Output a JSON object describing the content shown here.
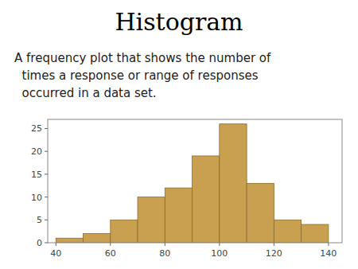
{
  "chart_data": {
    "type": "histogram",
    "title": "Histogram",
    "subtitle": [
      "A frequency plot that shows the number of",
      "  times a response or range of responses",
      "  occurred in a data set."
    ],
    "bins": [
      40,
      50,
      60,
      70,
      80,
      90,
      100,
      110,
      120,
      130,
      140
    ],
    "values": [
      1,
      2,
      5,
      10,
      12,
      19,
      26,
      13,
      5,
      4
    ],
    "color": "#C8A050",
    "xlim": [
      37,
      145
    ],
    "ylim": [
      0,
      27
    ],
    "xticks": [
      40,
      60,
      80,
      100,
      120,
      140
    ],
    "yticks": [
      0,
      5,
      10,
      15,
      20,
      25
    ],
    "grid": false
  }
}
